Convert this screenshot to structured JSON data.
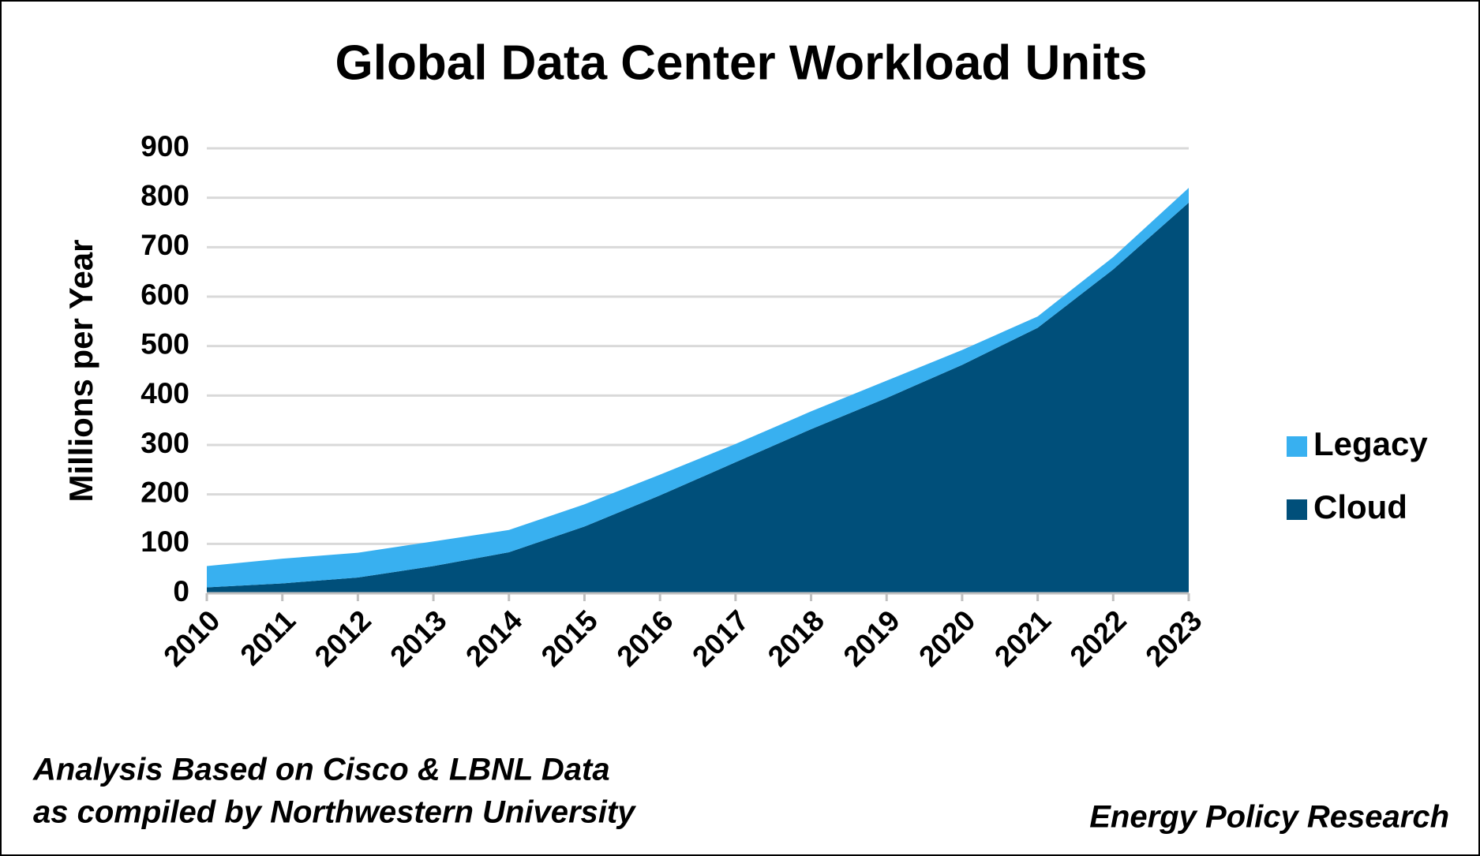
{
  "chart_data": {
    "type": "stacked_area",
    "title": "Global Data Center Workload Units",
    "y_label": "Millions per Year",
    "categories": [
      "2010",
      "2011",
      "2012",
      "2013",
      "2014",
      "2015",
      "2016",
      "2017",
      "2018",
      "2019",
      "2020",
      "2021",
      "2022",
      "2023"
    ],
    "series": [
      {
        "name": "Cloud",
        "color": "#004f7a",
        "values": [
          12,
          20,
          32,
          55,
          83,
          135,
          198,
          265,
          332,
          395,
          462,
          537,
          655,
          790
        ]
      },
      {
        "name": "Legacy",
        "color": "#38b0f0",
        "values": [
          43,
          50,
          50,
          50,
          45,
          45,
          42,
          37,
          36,
          35,
          30,
          23,
          25,
          30
        ]
      }
    ],
    "ylim": [
      0,
      900
    ],
    "yticks": [
      0,
      100,
      200,
      300,
      400,
      500,
      600,
      700,
      800,
      900
    ],
    "grid": true,
    "legend": "right",
    "source_lines": [
      "Analysis Based on Cisco & LBNL Data",
      "as compiled by Northwestern University"
    ],
    "credit": "Energy Policy Research"
  }
}
